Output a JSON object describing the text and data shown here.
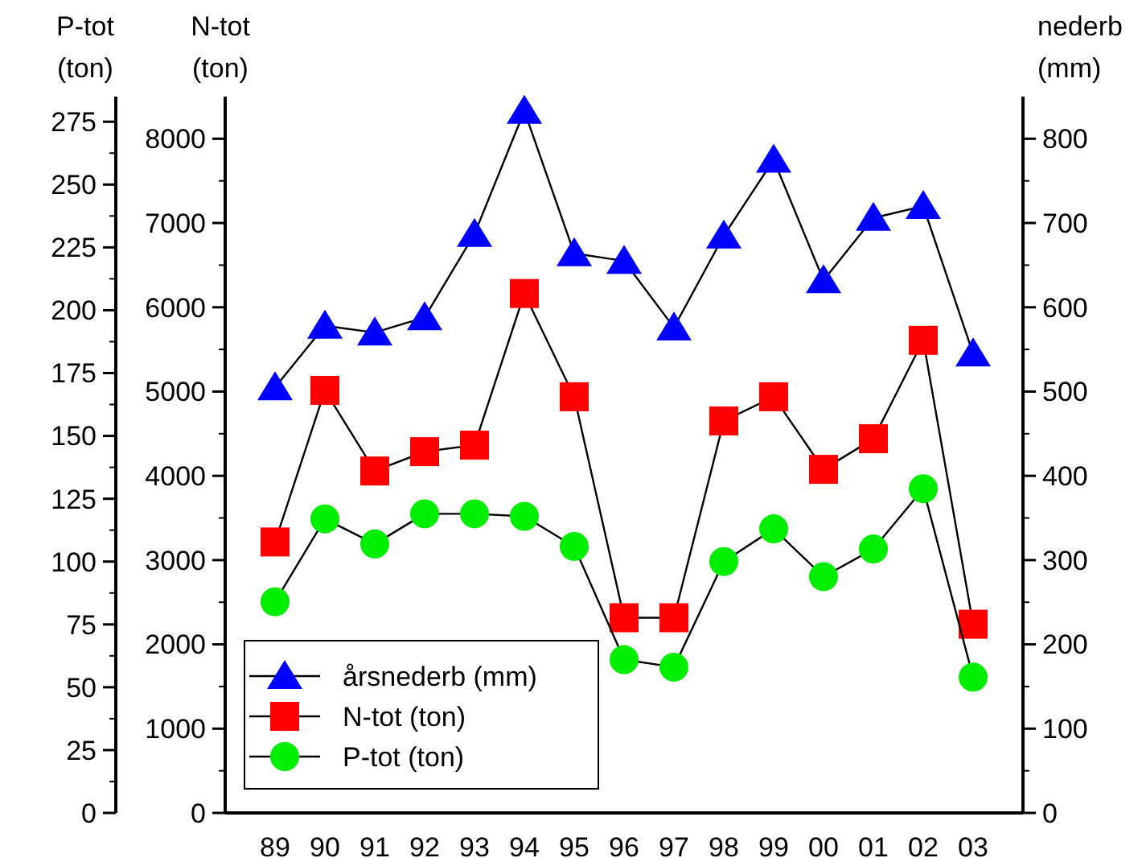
{
  "chart_data": {
    "type": "line",
    "categories": [
      "89",
      "90",
      "91",
      "92",
      "93",
      "94",
      "95",
      "96",
      "97",
      "98",
      "99",
      "00",
      "01",
      "02",
      "03"
    ],
    "ylabel": "N-tot\n(ton)",
    "y2label": "nederb\n(mm)",
    "y3label": "P-tot\n(ton)",
    "ylim": [
      0,
      8500
    ],
    "yticks": [
      0,
      1000,
      2000,
      3000,
      4000,
      5000,
      6000,
      7000,
      8000
    ],
    "y2lim": [
      0,
      850
    ],
    "y2ticks": [
      0,
      100,
      200,
      300,
      400,
      500,
      600,
      700,
      800
    ],
    "y3lim": [
      0,
      285
    ],
    "y3ticks": [
      0,
      25,
      50,
      75,
      100,
      125,
      150,
      175,
      200,
      225,
      250,
      275
    ],
    "grid": false,
    "legend": "bottom left",
    "series": [
      {
        "name": "årsnederb (mm)",
        "color": "#0000ff",
        "marker": "triangle",
        "axis": "y2",
        "values": [
          505,
          578,
          570,
          588,
          687,
          833,
          664,
          655,
          576,
          685,
          775,
          632,
          706,
          720,
          545
        ]
      },
      {
        "name": "N-tot (ton)",
        "color": "#ff0000",
        "marker": "square",
        "values": [
          3215,
          5014,
          4057,
          4287,
          4364,
          6163,
          4938,
          2316,
          2316,
          4651,
          4938,
          4077,
          4440,
          5608,
          2239
        ]
      },
      {
        "name": "P-tot (ton)",
        "color": "#00ee00",
        "marker": "circle",
        "axis": "y3",
        "values": [
          84,
          117,
          107,
          119,
          119,
          118,
          106,
          61,
          58,
          100,
          113,
          94,
          105,
          129,
          54
        ]
      }
    ]
  }
}
